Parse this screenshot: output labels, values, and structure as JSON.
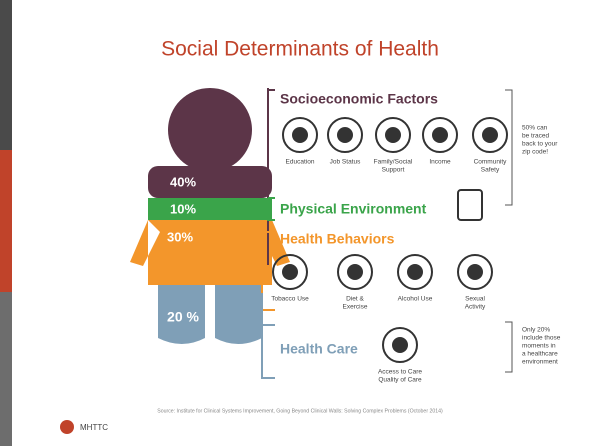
{
  "title": "Social Determinants of Health",
  "figure": {
    "segments": [
      "40%",
      "10%",
      "30%",
      "20 %"
    ]
  },
  "groups": [
    {
      "label": "Socioeconomic Factors",
      "items": [
        [
          "Education"
        ],
        [
          "Job Status"
        ],
        [
          "Family/Social",
          "Support"
        ],
        [
          "Income"
        ],
        [
          "Community",
          "Safety"
        ]
      ]
    },
    {
      "label": "Physical Environment",
      "items": []
    },
    {
      "label": "Health Behaviors",
      "items": [
        [
          "Tobacco Use"
        ],
        [
          "Diet &",
          "Exercise"
        ],
        [
          "Alcohol Use"
        ],
        [
          "Sexual",
          "Activity"
        ]
      ]
    },
    {
      "label": "Health Care",
      "items": [
        [
          "Access to Care",
          "Quality of Care"
        ]
      ]
    }
  ],
  "notes": [
    [
      "50% can",
      "be traced",
      "back to your",
      "zip code!"
    ],
    [
      "Only 20%",
      "include those",
      "moments in",
      "a healthcare",
      "environment"
    ]
  ],
  "footer": {
    "source": "Source: Institute for Clinical Systems Improvement, Going Beyond Clinical Walls: Solving Complex Problems (October 2014)",
    "logo": "MHTTC"
  }
}
